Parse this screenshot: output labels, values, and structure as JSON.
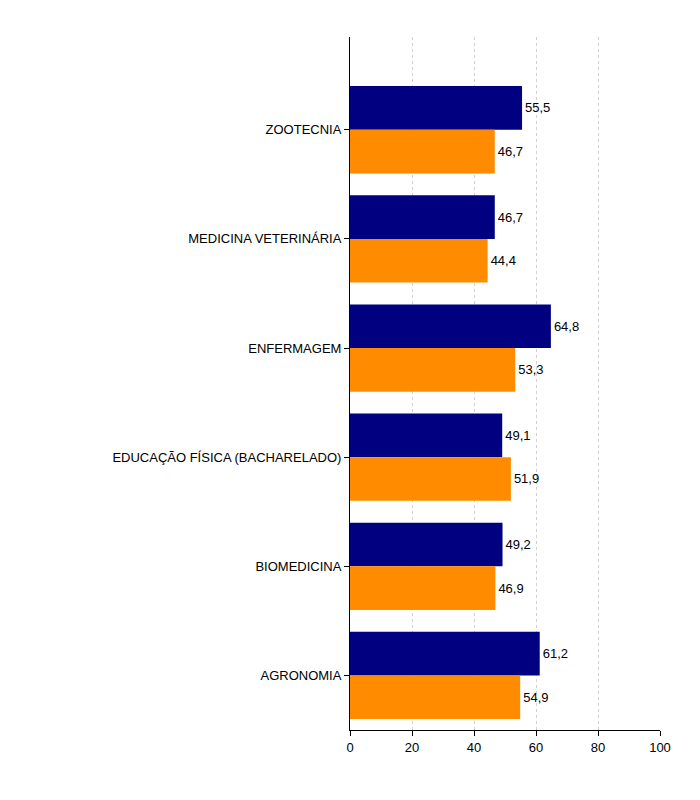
{
  "chart_data": {
    "type": "bar",
    "orientation": "horizontal",
    "categories": [
      "ZOOTECNIA",
      "MEDICINA VETERINÁRIA",
      "ENFERMAGEM",
      "EDUCAÇÃO FÍSICA (BACHARELADO)",
      "BIOMEDICINA",
      "AGRONOMIA"
    ],
    "series": [
      {
        "color": "#000080",
        "values": [
          55.5,
          46.7,
          64.8,
          49.1,
          49.2,
          61.2
        ],
        "value_labels": [
          "55,5",
          "46,7",
          "64,8",
          "49,1",
          "49,2",
          "61,2"
        ]
      },
      {
        "color": "#ff8c00",
        "values": [
          46.7,
          44.4,
          53.3,
          51.9,
          46.9,
          54.9
        ],
        "value_labels": [
          "46,7",
          "44,4",
          "53,3",
          "51,9",
          "46,9",
          "54,9"
        ]
      }
    ],
    "xlim": [
      0,
      100
    ],
    "xticks": [
      0,
      20,
      40,
      60,
      80,
      100
    ],
    "grid": true,
    "data_labels": true
  }
}
